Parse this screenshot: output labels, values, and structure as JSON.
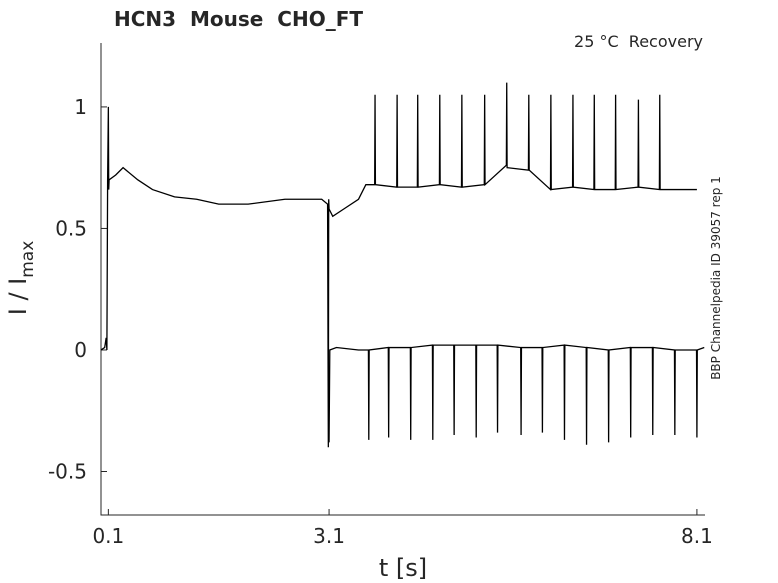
{
  "chart_data": {
    "type": "line",
    "title": "HCN3  Mouse  CHO_FT",
    "annotations": [
      "25 °C  Recovery",
      "BBP Channelpedia ID 39057 rep 1"
    ],
    "xlabel": "t [s]",
    "ylabel": "I / I",
    "ylabel_subscript": "max",
    "xlim": [
      0,
      8.21
    ],
    "ylim": [
      -0.679,
      1.263
    ],
    "xticks": [
      0.1,
      3.1,
      8.1
    ],
    "yticks": [
      -0.5,
      0,
      0.5,
      1
    ],
    "grid": false,
    "series": [
      {
        "color": "#000000",
        "x": [
          0,
          0.05,
          0.07,
          0.08,
          0.09,
          0.1,
          0.105,
          0.11,
          0.2,
          0.3,
          0.5,
          0.7,
          1.0,
          1.3,
          1.6,
          2.0,
          2.5,
          3.0,
          3.08,
          3.09,
          3.095,
          3.1,
          3.15,
          3.3,
          3.5,
          3.6,
          3.72,
          3.725,
          3.73,
          4.02,
          4.025,
          4.03,
          4.3,
          4.305,
          4.31,
          4.6,
          4.605,
          4.61,
          4.9,
          4.905,
          4.91,
          5.21,
          5.215,
          5.22,
          5.51,
          5.515,
          5.52,
          5.81,
          5.815,
          5.82,
          6.11,
          6.115,
          6.12,
          6.41,
          6.415,
          6.42,
          6.7,
          6.705,
          6.71,
          6.99,
          6.995,
          7.0,
          7.3,
          7.305,
          7.31,
          7.59,
          7.595,
          7.6,
          8.1
        ],
        "values": [
          0,
          0.01,
          0.05,
          0,
          0.7,
          1.0,
          0.66,
          0.7,
          0.72,
          0.75,
          0.7,
          0.66,
          0.63,
          0.62,
          0.6,
          0.6,
          0.62,
          0.62,
          0.6,
          -0.4,
          0.62,
          0.58,
          0.55,
          0.58,
          0.62,
          0.68,
          0.68,
          1.05,
          0.68,
          0.67,
          1.05,
          0.67,
          0.67,
          1.05,
          0.67,
          0.68,
          1.05,
          0.68,
          0.67,
          1.05,
          0.67,
          0.68,
          1.05,
          0.68,
          0.76,
          1.1,
          0.75,
          0.74,
          1.05,
          0.74,
          0.66,
          1.05,
          0.66,
          0.67,
          1.05,
          0.67,
          0.66,
          1.05,
          0.66,
          0.66,
          1.05,
          0.66,
          0.67,
          1.03,
          0.67,
          0.66,
          1.05,
          0.66,
          0.66
        ]
      },
      {
        "color": "#000000",
        "x": [
          3.1,
          3.11,
          3.2,
          3.5,
          3.635,
          3.64,
          3.645,
          3.905,
          3.91,
          3.915,
          4.205,
          4.21,
          4.215,
          4.505,
          4.51,
          4.515,
          4.795,
          4.8,
          4.805,
          5.095,
          5.1,
          5.105,
          5.385,
          5.39,
          5.395,
          5.705,
          5.71,
          5.715,
          5.995,
          6.0,
          6.005,
          6.295,
          6.3,
          6.305,
          6.595,
          6.6,
          6.605,
          6.895,
          6.9,
          6.905,
          7.195,
          7.2,
          7.205,
          7.495,
          7.5,
          7.505,
          7.795,
          7.8,
          7.805,
          8.095,
          8.1,
          8.105,
          8.2
        ],
        "values": [
          -0.38,
          0.0,
          0.01,
          0.0,
          0.0,
          -0.37,
          0.0,
          0.01,
          -0.36,
          0.01,
          0.01,
          -0.37,
          0.01,
          0.02,
          -0.37,
          0.02,
          0.02,
          -0.35,
          0.02,
          0.02,
          -0.36,
          0.02,
          0.02,
          -0.34,
          0.02,
          0.01,
          -0.35,
          0.01,
          0.01,
          -0.34,
          0.01,
          0.02,
          -0.37,
          0.02,
          0.01,
          -0.39,
          0.01,
          0.0,
          -0.38,
          0.0,
          0.01,
          -0.36,
          0.01,
          0.01,
          -0.35,
          0.01,
          0.0,
          -0.35,
          0.0,
          0.0,
          -0.36,
          0.0,
          0.01
        ]
      }
    ]
  }
}
